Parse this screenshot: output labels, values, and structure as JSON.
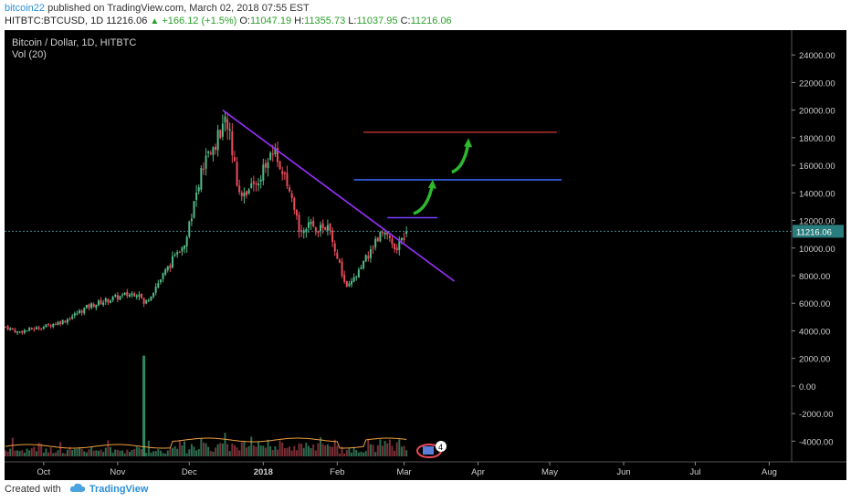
{
  "header": {
    "user": "bitcoin22",
    "published_text": "published on TradingView.com, March 02, 2018 07:55 EST",
    "symbol": "HITBTC:BTCUSD, 1D",
    "last": "11216.06",
    "change": "+166.12 (+1.5%)",
    "o_label": "O:",
    "o_value": "11047.19",
    "h_label": "H:",
    "h_value": "11355.73",
    "l_label": "L:",
    "l_value": "11037.95",
    "c_label": "C:",
    "c_value": "11216.06"
  },
  "chart": {
    "title": "Bitcoin / Dollar, 1D, HITBTC",
    "volume_label": "Vol (20)"
  },
  "footer": {
    "created_with": "Created with",
    "brand": "TradingView"
  },
  "colors": {
    "background": "#000000",
    "up": "#53b987",
    "down": "#eb4d5c",
    "trendline": "#9b30ff",
    "resistance_purple": "#7b3cff",
    "resistance_blue": "#3b6cff",
    "resistance_red": "#b0302f",
    "arrow": "#2eb82e",
    "price_line": "#4a8a8a",
    "price_tag": "#2a7d7d",
    "header_value": "#2ca02c"
  },
  "icons": {
    "tradingview_logo": "cloud-logo-icon",
    "events_badge": "flag-badge-icon"
  },
  "chart_data": {
    "type": "candlestick",
    "title": "Bitcoin / Dollar, 1D, HITBTC",
    "x_tick_labels": [
      "Oct",
      "Nov",
      "Dec",
      "2018",
      "Feb",
      "Mar",
      "Apr",
      "May",
      "Jun",
      "Jul",
      "Aug"
    ],
    "y_tick_labels": [
      "24000.00",
      "22000.00",
      "20000.00",
      "18000.00",
      "16000.00",
      "14000.00",
      "12000.00",
      "10000.00",
      "8000.00",
      "6000.00",
      "4000.00",
      "2000.00",
      "0.00",
      "-2000.00",
      "-4000.00"
    ],
    "ylim": [
      -5500,
      25800
    ],
    "current_price": 11216.06,
    "current_price_label": "11216.06",
    "start_date": "2017-09-15",
    "end_date": "2018-08-10",
    "anchors": [
      {
        "date": "2017-09-15",
        "close": 4300
      },
      {
        "date": "2017-09-20",
        "close": 3900
      },
      {
        "date": "2017-10-01",
        "close": 4300
      },
      {
        "date": "2017-10-10",
        "close": 4750
      },
      {
        "date": "2017-10-20",
        "close": 5800
      },
      {
        "date": "2017-10-31",
        "close": 6400
      },
      {
        "date": "2017-11-10",
        "close": 6800
      },
      {
        "date": "2017-11-12",
        "close": 5900
      },
      {
        "date": "2017-11-20",
        "close": 8000
      },
      {
        "date": "2017-11-29",
        "close": 10500
      },
      {
        "date": "2017-12-07",
        "close": 16000
      },
      {
        "date": "2017-12-17",
        "close": 19300
      },
      {
        "date": "2017-12-22",
        "close": 14000
      },
      {
        "date": "2017-12-28",
        "close": 14500
      },
      {
        "date": "2018-01-06",
        "close": 17100
      },
      {
        "date": "2018-01-16",
        "close": 11500
      },
      {
        "date": "2018-01-28",
        "close": 11500
      },
      {
        "date": "2018-02-05",
        "close": 7000
      },
      {
        "date": "2018-02-10",
        "close": 8200
      },
      {
        "date": "2018-02-20",
        "close": 11500
      },
      {
        "date": "2018-02-25",
        "close": 9700
      },
      {
        "date": "2018-03-02",
        "close": 11216.06
      }
    ],
    "volume_ylim": [
      -5500,
      25800
    ],
    "volume_spike": {
      "date": "2017-11-12",
      "value": 2200
    },
    "trendline": {
      "from": {
        "date": "2017-12-15",
        "price": 20000
      },
      "to": {
        "date": "2018-03-22",
        "price": 7600
      }
    },
    "resistance_lines": [
      {
        "price": 12200,
        "from": "2018-02-22",
        "to": "2018-03-15",
        "color": "purple"
      },
      {
        "price": 14950,
        "from": "2018-02-08",
        "to": "2018-05-06",
        "color": "blue"
      },
      {
        "price": 18400,
        "from": "2018-02-12",
        "to": "2018-05-04",
        "color": "red"
      }
    ],
    "arrows": [
      {
        "from": {
          "date": "2018-03-05",
          "price": 12500
        },
        "to": {
          "date": "2018-03-13",
          "price": 14700
        }
      },
      {
        "from": {
          "date": "2018-03-21",
          "price": 15500
        },
        "to": {
          "date": "2018-03-28",
          "price": 17700
        }
      }
    ]
  }
}
